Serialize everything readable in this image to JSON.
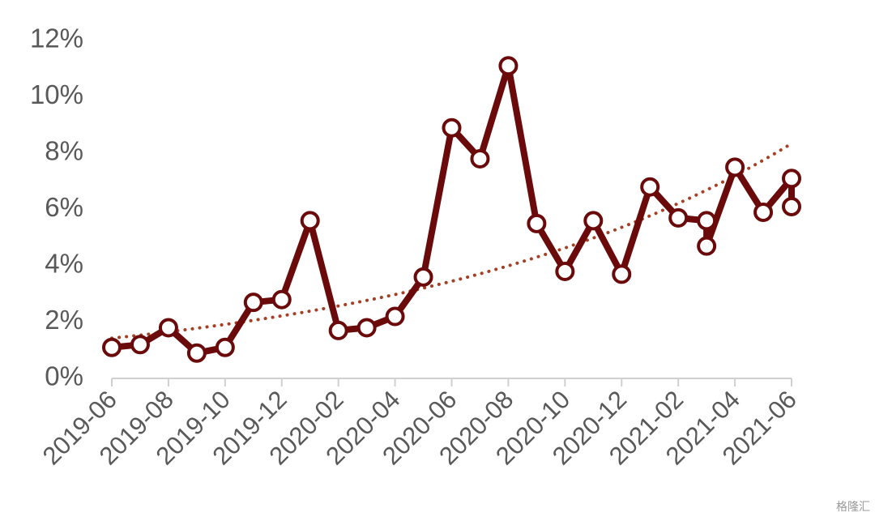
{
  "chart_data": {
    "type": "line",
    "x": [
      "2019-06",
      "2019-07",
      "2019-08",
      "2019-09",
      "2019-10",
      "2019-11",
      "2019-12",
      "2020-01",
      "2020-02",
      "2020-03",
      "2020-04",
      "2020-05",
      "2020-06",
      "2020-07",
      "2020-08",
      "2020-09",
      "2020-10",
      "2020-11",
      "2020-12",
      "2021-01",
      "2021-02",
      "2021-03",
      "2021-03",
      "2021-04",
      "2021-05",
      "2021-06",
      "2021-06"
    ],
    "values": [
      1.1,
      1.2,
      1.8,
      0.9,
      1.1,
      2.7,
      2.8,
      5.6,
      1.7,
      1.8,
      2.2,
      3.6,
      8.9,
      7.8,
      11.1,
      5.5,
      3.8,
      5.6,
      3.7,
      6.8,
      5.7,
      5.6,
      4.7,
      7.5,
      5.9,
      7.1,
      6.1
    ],
    "color": "#6b0a0a",
    "trendline": {
      "type": "exponential",
      "color": "#a63f23"
    },
    "xlim": [
      "2019-06",
      "2021-06"
    ],
    "xticks": [
      "2019-06",
      "2019-08",
      "2019-10",
      "2019-12",
      "2020-02",
      "2020-04",
      "2020-06",
      "2020-08",
      "2020-10",
      "2020-12",
      "2021-02",
      "2021-04",
      "2021-06"
    ],
    "ylim": [
      0,
      12
    ],
    "yticks": [
      {
        "value": 0,
        "label": "0%"
      },
      {
        "value": 2,
        "label": "2%"
      },
      {
        "value": 4,
        "label": "4%"
      },
      {
        "value": 6,
        "label": "6%"
      },
      {
        "value": 8,
        "label": "8%"
      },
      {
        "value": 10,
        "label": "10%"
      },
      {
        "value": 12,
        "label": "12%"
      }
    ],
    "watermark": "格隆汇"
  }
}
